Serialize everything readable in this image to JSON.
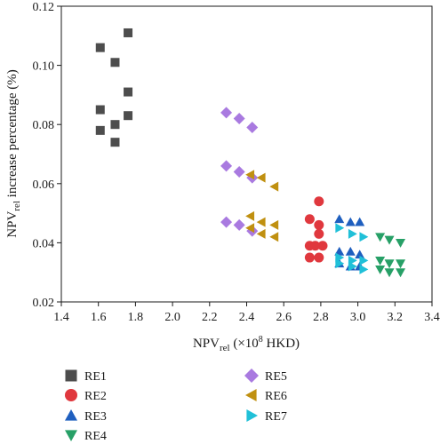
{
  "chart_data": {
    "type": "scatter",
    "xlabel": {
      "main": "NPV",
      "sub": "rel",
      "rest_pre": " (×10",
      "sup": "8",
      "rest_post": " HKD)"
    },
    "ylabel": {
      "main": "NPV",
      "sub": "rel",
      "rest": "  increase percentage (%)"
    },
    "xlim": [
      1.4,
      3.4
    ],
    "ylim": [
      0.02,
      0.12
    ],
    "xticks": [
      "1.4",
      "1.6",
      "1.8",
      "2.0",
      "2.2",
      "2.4",
      "2.6",
      "2.8",
      "3.0",
      "3.2",
      "3.4"
    ],
    "yticks": [
      "0.02",
      "0.04",
      "0.06",
      "0.08",
      "0.10",
      "0.12"
    ],
    "grid": false,
    "legend_position": "bottom",
    "series": [
      {
        "name": "RE1",
        "marker": "square",
        "color": "#4d4d4d",
        "points": [
          [
            1.61,
            0.106
          ],
          [
            1.76,
            0.111
          ],
          [
            1.69,
            0.101
          ],
          [
            1.76,
            0.091
          ],
          [
            1.61,
            0.085
          ],
          [
            1.76,
            0.083
          ],
          [
            1.69,
            0.08
          ],
          [
            1.61,
            0.078
          ],
          [
            1.69,
            0.074
          ]
        ]
      },
      {
        "name": "RE2",
        "marker": "circle",
        "color": "#e0383e",
        "points": [
          [
            2.79,
            0.054
          ],
          [
            2.74,
            0.048
          ],
          [
            2.79,
            0.046
          ],
          [
            2.79,
            0.043
          ],
          [
            2.74,
            0.039
          ],
          [
            2.77,
            0.039
          ],
          [
            2.81,
            0.039
          ],
          [
            2.74,
            0.035
          ],
          [
            2.79,
            0.035
          ]
        ]
      },
      {
        "name": "RE3",
        "marker": "triangle-up",
        "color": "#1f5fbf",
        "points": [
          [
            2.9,
            0.048
          ],
          [
            2.96,
            0.047
          ],
          [
            3.01,
            0.047
          ],
          [
            2.9,
            0.037
          ],
          [
            2.96,
            0.037
          ],
          [
            3.01,
            0.036
          ],
          [
            2.9,
            0.033
          ],
          [
            2.96,
            0.032
          ],
          [
            3.01,
            0.032
          ]
        ]
      },
      {
        "name": "RE4",
        "marker": "triangle-down",
        "color": "#27a067",
        "points": [
          [
            3.12,
            0.042
          ],
          [
            3.17,
            0.041
          ],
          [
            3.23,
            0.04
          ],
          [
            3.12,
            0.034
          ],
          [
            3.17,
            0.033
          ],
          [
            3.23,
            0.033
          ],
          [
            3.12,
            0.031
          ],
          [
            3.17,
            0.03
          ],
          [
            3.23,
            0.03
          ]
        ]
      },
      {
        "name": "RE5",
        "marker": "diamond",
        "color": "#a97ae0",
        "points": [
          [
            2.29,
            0.084
          ],
          [
            2.36,
            0.082
          ],
          [
            2.43,
            0.079
          ],
          [
            2.29,
            0.066
          ],
          [
            2.36,
            0.064
          ],
          [
            2.43,
            0.062
          ],
          [
            2.29,
            0.047
          ],
          [
            2.36,
            0.046
          ],
          [
            2.43,
            0.044
          ]
        ]
      },
      {
        "name": "RE6",
        "marker": "triangle-left",
        "color": "#c09010",
        "points": [
          [
            2.42,
            0.063
          ],
          [
            2.48,
            0.062
          ],
          [
            2.55,
            0.059
          ],
          [
            2.42,
            0.049
          ],
          [
            2.48,
            0.047
          ],
          [
            2.55,
            0.046
          ],
          [
            2.42,
            0.045
          ],
          [
            2.48,
            0.043
          ],
          [
            2.55,
            0.042
          ]
        ]
      },
      {
        "name": "RE7",
        "marker": "triangle-right",
        "color": "#20c0d8",
        "points": [
          [
            2.9,
            0.045
          ],
          [
            2.97,
            0.043
          ],
          [
            3.03,
            0.042
          ],
          [
            2.9,
            0.035
          ],
          [
            2.97,
            0.034
          ],
          [
            3.03,
            0.034
          ],
          [
            2.9,
            0.033
          ],
          [
            2.97,
            0.032
          ],
          [
            3.03,
            0.031
          ]
        ]
      }
    ]
  }
}
